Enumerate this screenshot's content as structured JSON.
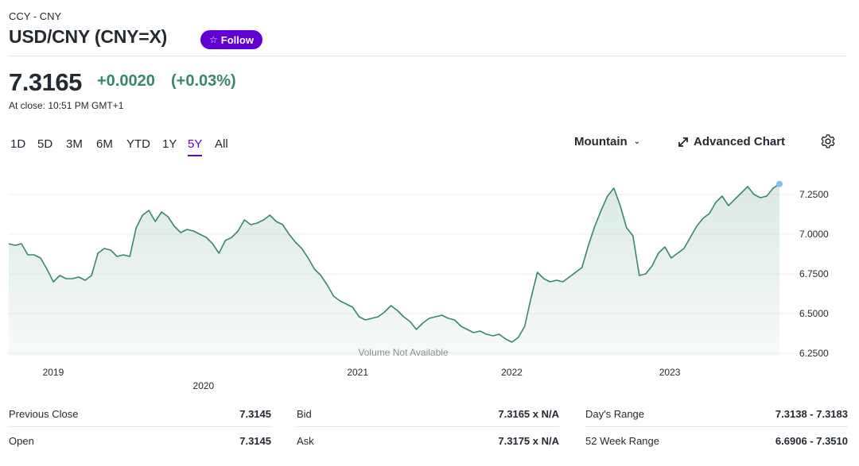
{
  "header": {
    "breadcrumb": "CCY - CNY",
    "title": "USD/CNY (CNY=X)",
    "follow_label": "Follow",
    "accent_color": "#6001d2"
  },
  "quote": {
    "price": "7.3165",
    "change": "+0.0020",
    "change_percent": "(+0.03%)",
    "close_time": "At close: 10:51 PM GMT+1",
    "positive_color": "#39876b"
  },
  "range_tabs": [
    {
      "label": "1D",
      "active": false
    },
    {
      "label": "5D",
      "active": false
    },
    {
      "label": "3M",
      "active": false
    },
    {
      "label": "6M",
      "active": false
    },
    {
      "label": "YTD",
      "active": false
    },
    {
      "label": "1Y",
      "active": false
    },
    {
      "label": "5Y",
      "active": true
    },
    {
      "label": "All",
      "active": false
    }
  ],
  "toolbar": {
    "chart_type_label": "Mountain",
    "advanced_chart_label": "Advanced Chart"
  },
  "chart_data": {
    "type": "area",
    "title": "",
    "xlabel": "",
    "ylabel": "",
    "ylim": [
      6.22,
      7.32
    ],
    "y_ticks": [
      "7.2500",
      "7.0000",
      "6.7500",
      "6.5000",
      "6.2500"
    ],
    "y_tick_values": [
      7.25,
      7.0,
      6.75,
      6.5,
      6.25
    ],
    "x_ticks": [
      {
        "label": "2019",
        "t": 0.035
      },
      {
        "label": "2020",
        "t": 0.23
      },
      {
        "label": "2021",
        "t": 0.43
      },
      {
        "label": "2022",
        "t": 0.63
      },
      {
        "label": "2023",
        "t": 0.835
      }
    ],
    "annotation": "Volume Not Available",
    "line_color": "#39876b",
    "values": [
      6.94,
      6.93,
      6.94,
      6.87,
      6.87,
      6.85,
      6.78,
      6.7,
      6.74,
      6.72,
      6.72,
      6.73,
      6.71,
      6.74,
      6.88,
      6.91,
      6.9,
      6.86,
      6.87,
      6.86,
      7.04,
      7.12,
      7.15,
      7.08,
      7.14,
      7.11,
      7.05,
      7.01,
      7.03,
      7.02,
      7.0,
      6.98,
      6.94,
      6.88,
      6.96,
      6.98,
      7.02,
      7.09,
      7.06,
      7.07,
      7.09,
      7.12,
      7.08,
      7.06,
      7.0,
      6.95,
      6.91,
      6.85,
      6.78,
      6.74,
      6.68,
      6.61,
      6.58,
      6.56,
      6.54,
      6.48,
      6.46,
      6.47,
      6.48,
      6.51,
      6.55,
      6.52,
      6.48,
      6.45,
      6.4,
      6.44,
      6.47,
      6.48,
      6.49,
      6.47,
      6.46,
      6.42,
      6.4,
      6.38,
      6.39,
      6.37,
      6.36,
      6.37,
      6.34,
      6.32,
      6.35,
      6.42,
      6.6,
      6.76,
      6.72,
      6.7,
      6.71,
      6.7,
      6.73,
      6.76,
      6.79,
      6.93,
      7.05,
      7.15,
      7.24,
      7.29,
      7.18,
      7.04,
      6.99,
      6.74,
      6.75,
      6.8,
      6.88,
      6.92,
      6.85,
      6.88,
      6.91,
      6.98,
      7.05,
      7.1,
      7.13,
      7.2,
      7.24,
      7.18,
      7.22,
      7.26,
      7.3,
      7.25,
      7.23,
      7.24,
      7.29,
      7.3165
    ]
  },
  "stats": {
    "rows": [
      {
        "label": "Previous Close",
        "value": "7.3145"
      },
      {
        "label": "Open",
        "value": "7.3145"
      },
      {
        "label": "Bid",
        "value": "7.3165 x N/A"
      },
      {
        "label": "Ask",
        "value": "7.3175 x N/A"
      },
      {
        "label": "Day's Range",
        "value": "7.3138 - 7.3183"
      },
      {
        "label": "52 Week Range",
        "value": "6.6906 - 7.3510"
      }
    ]
  }
}
